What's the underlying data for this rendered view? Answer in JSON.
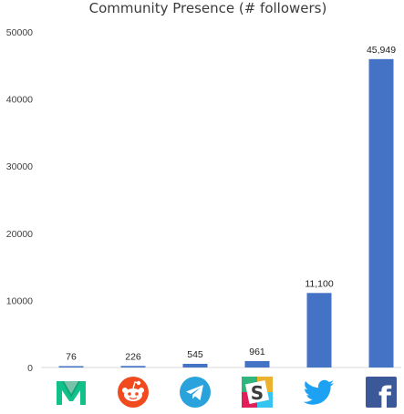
{
  "chart_data": {
    "type": "bar",
    "title": "Community Presence (# followers)",
    "categories": [
      "Medium",
      "Reddit",
      "Telegram",
      "Slack",
      "Twitter",
      "Facebook"
    ],
    "values": [
      76,
      226,
      545,
      961,
      11100,
      45949
    ],
    "data_labels": [
      "76",
      "226",
      "545",
      "961",
      "11,100",
      "45,949"
    ],
    "y_ticks": [
      "0",
      "10000",
      "20000",
      "30000",
      "40000",
      "50000"
    ],
    "ylim": [
      0,
      50000
    ],
    "xlabel": "",
    "ylabel": "",
    "grid": false,
    "legend": "none",
    "x_tick_style": "brand icons",
    "bar_color": "#4472c4"
  },
  "icons": [
    {
      "name": "medium-icon",
      "bg": "#ffffff",
      "fg": "#13c08a",
      "glyph": "M"
    },
    {
      "name": "reddit-icon",
      "bg": "#f04a1e",
      "fg": "#ffffff",
      "glyph": ""
    },
    {
      "name": "telegram-icon",
      "bg": "#2aa3dc",
      "fg": "#ffffff",
      "glyph": ""
    },
    {
      "name": "slack-icon",
      "bg": "#ffffff",
      "fg": "#3c3c3c",
      "glyph": "S"
    },
    {
      "name": "twitter-icon",
      "bg": "#ffffff",
      "fg": "#1da1f2",
      "glyph": ""
    },
    {
      "name": "facebook-icon",
      "bg": "#3b5998",
      "fg": "#ffffff",
      "glyph": "f"
    }
  ]
}
